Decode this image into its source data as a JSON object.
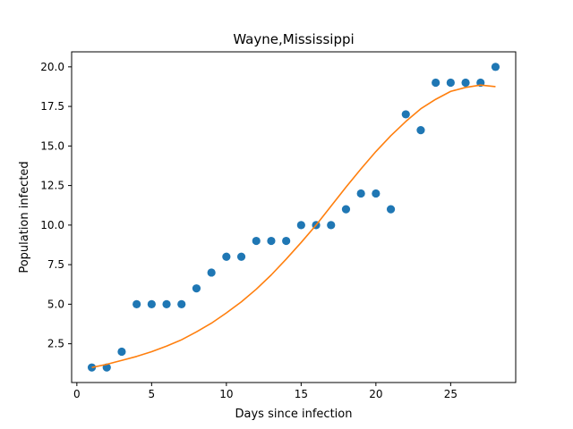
{
  "chart_data": {
    "type": "scatter",
    "title": "Wayne,Mississippi",
    "xlabel": "Days since infection",
    "ylabel": "Population infected",
    "xlim": [
      -0.35,
      29.35
    ],
    "ylim": [
      0.05,
      20.95
    ],
    "xticks": [
      0,
      5,
      10,
      15,
      20,
      25
    ],
    "xtick_labels": [
      "0",
      "5",
      "10",
      "15",
      "20",
      "25"
    ],
    "yticks": [
      2.5,
      5.0,
      7.5,
      10.0,
      12.5,
      15.0,
      17.5,
      20.0
    ],
    "ytick_labels": [
      "2.5",
      "5.0",
      "7.5",
      "10.0",
      "12.5",
      "15.0",
      "17.5",
      "20.0"
    ],
    "grid": false,
    "series": [
      {
        "kind": "scatter",
        "color": "#1f77b4",
        "x": [
          1,
          2,
          3,
          4,
          5,
          6,
          7,
          8,
          9,
          10,
          11,
          12,
          13,
          14,
          15,
          16,
          17,
          18,
          19,
          20,
          21,
          22,
          23,
          24,
          25,
          26,
          27,
          28
        ],
        "y": [
          1,
          1,
          2,
          5,
          5,
          5,
          5,
          6,
          7,
          8,
          8,
          9,
          9,
          9,
          10,
          10,
          10,
          11,
          12,
          12,
          11,
          17,
          16,
          19,
          19,
          19,
          19,
          20
        ]
      },
      {
        "kind": "line",
        "color": "#ff7f0e",
        "x": [
          1,
          2,
          3,
          4,
          5,
          6,
          7,
          8,
          9,
          10,
          11,
          12,
          13,
          14,
          15,
          16,
          17,
          18,
          19,
          20,
          21,
          22,
          23,
          24,
          25,
          26,
          27,
          28
        ],
        "y": [
          1.0,
          1.2,
          1.45,
          1.7,
          2.0,
          2.35,
          2.75,
          3.25,
          3.8,
          4.45,
          5.15,
          5.95,
          6.85,
          7.85,
          8.9,
          10.0,
          11.2,
          12.4,
          13.55,
          14.65,
          15.65,
          16.55,
          17.35,
          17.95,
          18.45,
          18.7,
          18.85,
          18.75
        ]
      }
    ]
  }
}
